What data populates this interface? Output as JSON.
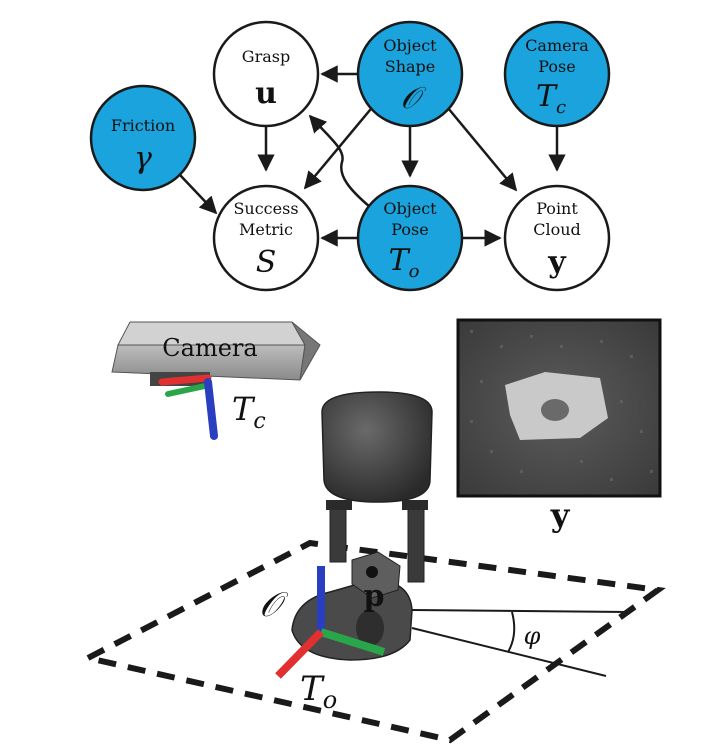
{
  "colors": {
    "observed_node": "#1aa3dc",
    "latent_node": "#ffffff",
    "stroke": "#1a1a1a"
  },
  "graph": {
    "nodes": {
      "grasp": {
        "label": "Grasp",
        "symbol": "u"
      },
      "object_shape": {
        "label_line1": "Object",
        "label_line2": "Shape",
        "symbol": "𝒪"
      },
      "camera_pose": {
        "label_line1": "Camera",
        "label_line2": "Pose",
        "symbol": "T",
        "subscript": "c"
      },
      "friction": {
        "label": "Friction",
        "symbol": "γ"
      },
      "success_metric": {
        "label_line1": "Success",
        "label_line2": "Metric",
        "symbol": "S"
      },
      "object_pose": {
        "label_line1": "Object",
        "label_line2": "Pose",
        "symbol": "T",
        "subscript": "o"
      },
      "point_cloud": {
        "label_line1": "Point",
        "label_line2": "Cloud",
        "symbol": "y"
      }
    }
  },
  "scene": {
    "camera_label": "Camera",
    "camera_pose_symbol": "T",
    "camera_pose_subscript": "c",
    "depth_image_symbol": "y",
    "object_symbol": "𝒪",
    "grasp_point_symbol": "p",
    "object_pose_symbol": "T",
    "object_pose_subscript": "o",
    "angle_symbol": "φ"
  }
}
